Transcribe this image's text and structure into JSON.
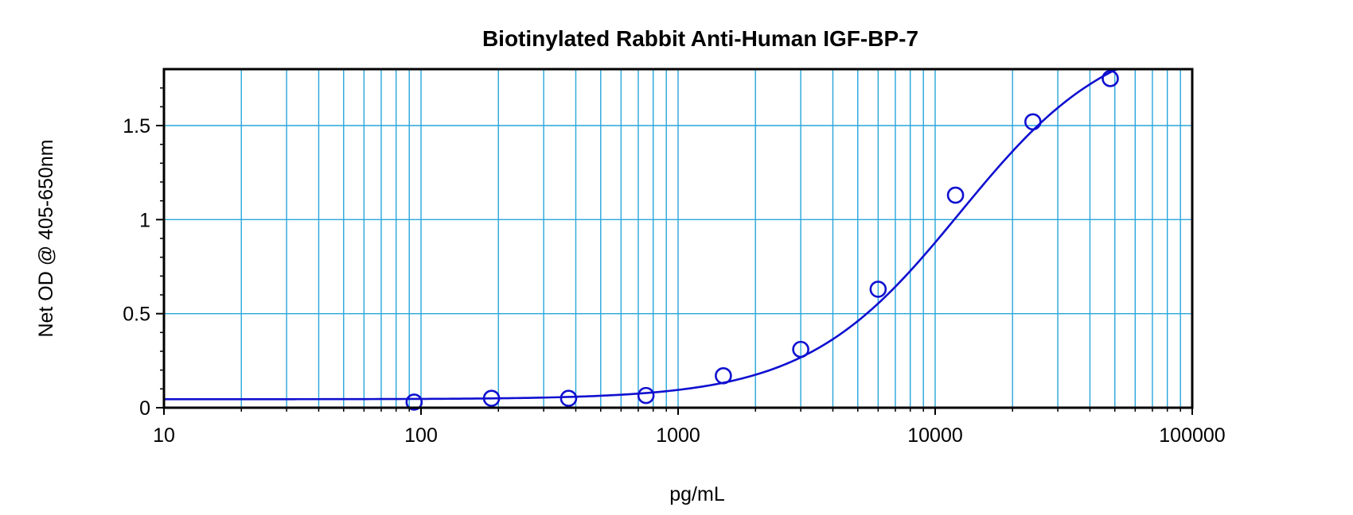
{
  "chart_data": {
    "type": "scatter",
    "title": "Biotinylated Rabbit Anti-Human IGF-BP-7",
    "xlabel": "pg/mL",
    "ylabel": "Net OD @ 405-650nm",
    "x_scale": "log",
    "xlim": [
      10,
      100000
    ],
    "ylim": [
      0,
      1.8
    ],
    "x_ticks": [
      10,
      100,
      1000,
      10000,
      100000
    ],
    "x_tick_labels": [
      "10",
      "100",
      "1000",
      "10000",
      "100000"
    ],
    "y_ticks": [
      0,
      0.5,
      1,
      1.5
    ],
    "y_tick_labels": [
      "0",
      "0.5",
      "1",
      "1.5"
    ],
    "grid": true,
    "points": [
      {
        "x": 94,
        "y": 0.03
      },
      {
        "x": 188,
        "y": 0.05
      },
      {
        "x": 375,
        "y": 0.05
      },
      {
        "x": 750,
        "y": 0.065
      },
      {
        "x": 1500,
        "y": 0.17
      },
      {
        "x": 3000,
        "y": 0.31
      },
      {
        "x": 6000,
        "y": 0.63
      },
      {
        "x": 12000,
        "y": 1.13
      },
      {
        "x": 24000,
        "y": 1.52
      },
      {
        "x": 48000,
        "y": 1.75
      }
    ],
    "curve": {
      "type": "4PL",
      "bottom": 0.045,
      "top": 2.03,
      "ec50": 12500,
      "hill": 1.45,
      "x_range": [
        10,
        60000
      ]
    },
    "colors": {
      "curve": "#1010d0",
      "markers": "#1010d0",
      "grid": "#27a6dc",
      "axes": "#000000"
    }
  }
}
